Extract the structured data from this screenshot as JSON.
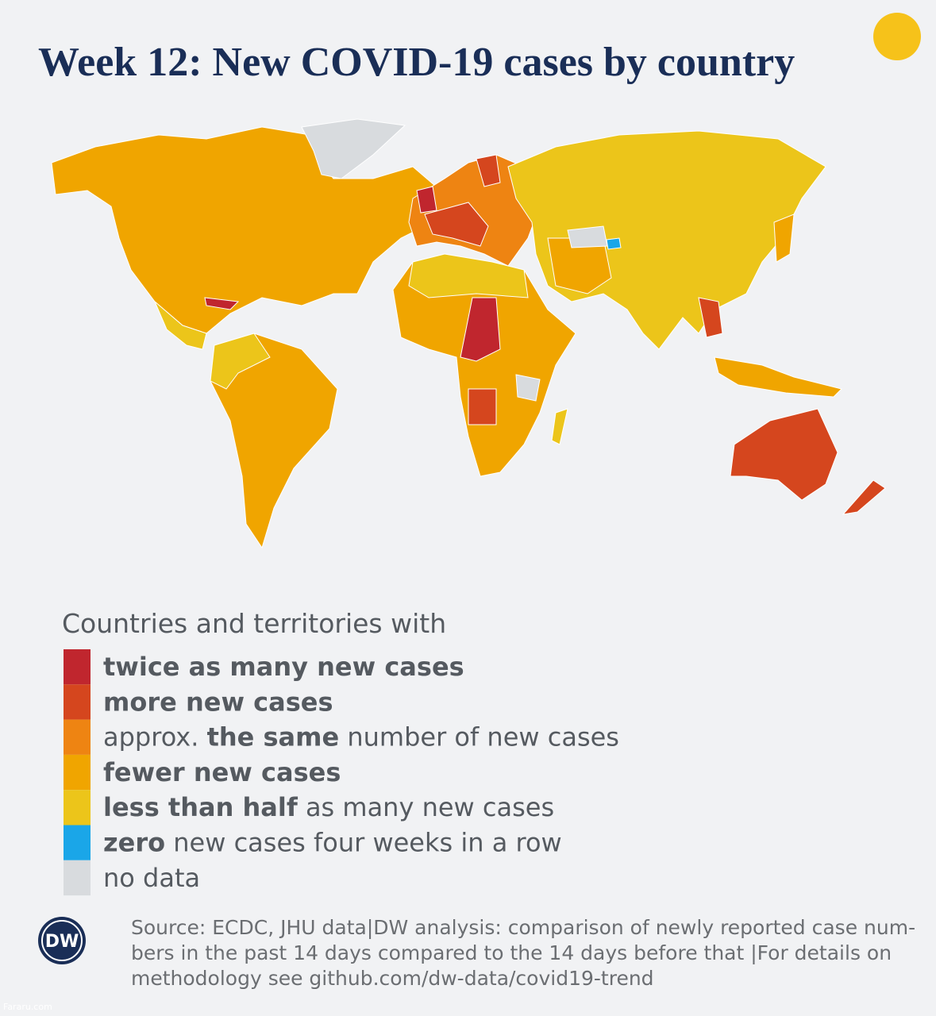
{
  "header": {
    "title": "Week 12: New COVID-19 cases by country"
  },
  "legend": {
    "heading": "Countries and territories with",
    "items": [
      {
        "color": "#c0262e",
        "parts": [
          {
            "text": "twice as many new cases",
            "strong": true
          }
        ]
      },
      {
        "color": "#d5461e",
        "parts": [
          {
            "text": "more new cases",
            "strong": true
          }
        ]
      },
      {
        "color": "#ee8412",
        "parts": [
          {
            "text": "approx. "
          },
          {
            "text": "the same",
            "strong": true
          },
          {
            "text": " number of new cases"
          }
        ]
      },
      {
        "color": "#f0a500",
        "parts": [
          {
            "text": "fewer new cases",
            "strong": true
          }
        ]
      },
      {
        "color": "#ecc51a",
        "parts": [
          {
            "text": "less than half",
            "strong": true
          },
          {
            "text": " as many new cases"
          }
        ]
      },
      {
        "color": "#1aa6e8",
        "parts": [
          {
            "text": "zero",
            "strong": true
          },
          {
            "text": " new cases four weeks in a row"
          }
        ]
      },
      {
        "color": "#d8dbde",
        "parts": [
          {
            "text": "no data"
          }
        ]
      }
    ]
  },
  "footer": {
    "logo": "DW",
    "source_lines": [
      "Source: ECDC, JHU data|DW analysis: comparison of newly reported case num-",
      "bers in the past 14 days compared to the 14 days before that |For details on",
      "methodology see github.com/dw-data/covid19-trend"
    ],
    "watermark": "Fararu.com"
  }
}
